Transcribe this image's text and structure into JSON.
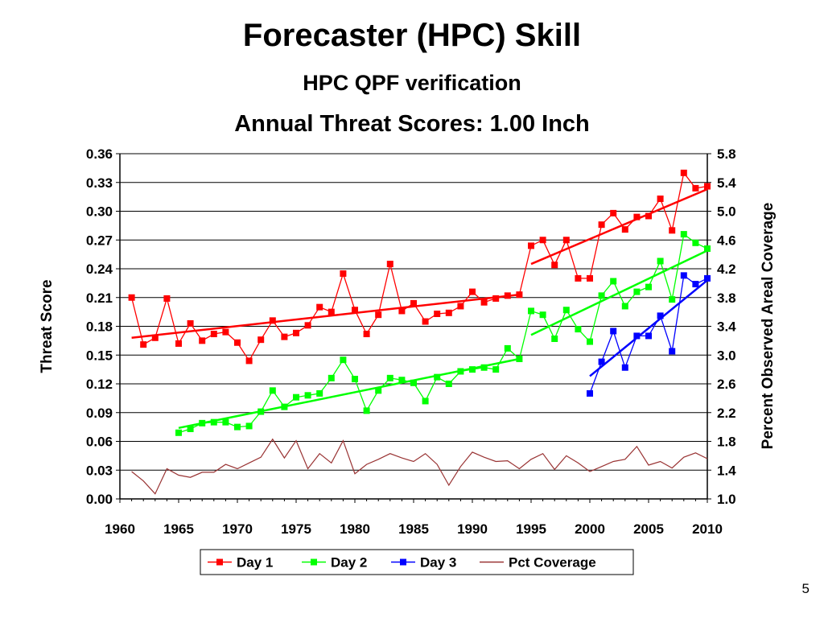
{
  "slide": {
    "title": "Forecaster (HPC) Skill",
    "page_number": "5"
  },
  "chart_data": {
    "type": "line",
    "title": "HPC QPF verification",
    "subtitle": "Annual Threat Scores:  1.00 Inch",
    "xlabel": "",
    "ylabel": "Threat Score",
    "y2label": "Percent Observed Areal Coverage",
    "xlim": [
      1960,
      2010
    ],
    "ylim": [
      0.0,
      0.36
    ],
    "y2lim": [
      1.0,
      5.8
    ],
    "x_ticks": [
      1960,
      1965,
      1970,
      1975,
      1980,
      1985,
      1990,
      1995,
      2000,
      2005,
      2010
    ],
    "y_ticks": [
      "0.00",
      "0.03",
      "0.06",
      "0.09",
      "0.12",
      "0.15",
      "0.18",
      "0.21",
      "0.24",
      "0.27",
      "0.30",
      "0.33",
      "0.36"
    ],
    "y2_ticks": [
      "1.0",
      "1.4",
      "1.8",
      "2.2",
      "2.6",
      "3.0",
      "3.4",
      "3.8",
      "4.2",
      "4.6",
      "5.0",
      "5.4",
      "5.8"
    ],
    "grid": "horizontal",
    "legend_position": "bottom",
    "series": [
      {
        "name": "Day 1",
        "color": "#ff0000",
        "marker": "square",
        "axis": "left",
        "x": [
          1961,
          1962,
          1963,
          1964,
          1965,
          1966,
          1967,
          1968,
          1969,
          1970,
          1971,
          1972,
          1973,
          1974,
          1975,
          1976,
          1977,
          1978,
          1979,
          1980,
          1981,
          1982,
          1983,
          1984,
          1985,
          1986,
          1987,
          1988,
          1989,
          1990,
          1991,
          1992,
          1993,
          1994,
          1995,
          1996,
          1997,
          1998,
          1999,
          2000,
          2001,
          2002,
          2003,
          2004,
          2005,
          2006,
          2007,
          2008,
          2009,
          2010
        ],
        "values": [
          0.21,
          0.161,
          0.168,
          0.209,
          0.162,
          0.183,
          0.165,
          0.172,
          0.174,
          0.163,
          0.144,
          0.166,
          0.186,
          0.169,
          0.173,
          0.181,
          0.2,
          0.195,
          0.235,
          0.197,
          0.172,
          0.192,
          0.245,
          0.196,
          0.204,
          0.185,
          0.193,
          0.194,
          0.201,
          0.216,
          0.205,
          0.209,
          0.212,
          0.213,
          0.264,
          0.27,
          0.244,
          0.27,
          0.23,
          0.23,
          0.286,
          0.298,
          0.281,
          0.294,
          0.295,
          0.313,
          0.28,
          0.34,
          0.324,
          0.326
        ]
      },
      {
        "name": "Day 2",
        "color": "#00ff00",
        "marker": "square",
        "axis": "left",
        "x": [
          1965,
          1966,
          1967,
          1968,
          1969,
          1970,
          1971,
          1972,
          1973,
          1974,
          1975,
          1976,
          1977,
          1978,
          1979,
          1980,
          1981,
          1982,
          1983,
          1984,
          1985,
          1986,
          1987,
          1988,
          1989,
          1990,
          1991,
          1992,
          1993,
          1994,
          1995,
          1996,
          1997,
          1998,
          1999,
          2000,
          2001,
          2002,
          2003,
          2004,
          2005,
          2006,
          2007,
          2008,
          2009,
          2010
        ],
        "values": [
          0.069,
          0.073,
          0.079,
          0.08,
          0.08,
          0.075,
          0.076,
          0.091,
          0.113,
          0.096,
          0.106,
          0.108,
          0.11,
          0.126,
          0.145,
          0.125,
          0.092,
          0.113,
          0.126,
          0.124,
          0.121,
          0.102,
          0.127,
          0.12,
          0.133,
          0.135,
          0.137,
          0.135,
          0.157,
          0.146,
          0.196,
          0.192,
          0.167,
          0.197,
          0.177,
          0.164,
          0.212,
          0.227,
          0.201,
          0.216,
          0.221,
          0.248,
          0.208,
          0.276,
          0.267,
          0.261
        ]
      },
      {
        "name": "Day 3",
        "color": "#0000ff",
        "marker": "square",
        "axis": "left",
        "x": [
          2000,
          2001,
          2002,
          2003,
          2004,
          2005,
          2006,
          2007,
          2008,
          2009,
          2010
        ],
        "values": [
          0.11,
          0.143,
          0.175,
          0.137,
          0.17,
          0.17,
          0.191,
          0.154,
          0.233,
          0.224,
          0.23
        ]
      },
      {
        "name": "Pct Coverage",
        "color": "#993333",
        "marker": "none",
        "axis": "right",
        "x": [
          1961,
          1962,
          1963,
          1964,
          1965,
          1966,
          1967,
          1968,
          1969,
          1970,
          1971,
          1972,
          1973,
          1974,
          1975,
          1976,
          1977,
          1978,
          1979,
          1980,
          1981,
          1982,
          1983,
          1984,
          1985,
          1986,
          1987,
          1988,
          1989,
          1990,
          1991,
          1992,
          1993,
          1994,
          1995,
          1996,
          1997,
          1998,
          1999,
          2000,
          2001,
          2002,
          2003,
          2004,
          2005,
          2006,
          2007,
          2008,
          2009,
          2010
        ],
        "values": [
          1.38,
          1.25,
          1.07,
          1.42,
          1.33,
          1.3,
          1.37,
          1.37,
          1.48,
          1.42,
          1.5,
          1.58,
          1.83,
          1.57,
          1.81,
          1.42,
          1.63,
          1.5,
          1.81,
          1.35,
          1.48,
          1.55,
          1.63,
          1.57,
          1.52,
          1.63,
          1.48,
          1.19,
          1.45,
          1.65,
          1.58,
          1.52,
          1.53,
          1.42,
          1.55,
          1.63,
          1.41,
          1.6,
          1.5,
          1.38,
          1.45,
          1.52,
          1.55,
          1.73,
          1.47,
          1.52,
          1.43,
          1.58,
          1.64,
          1.56
        ]
      }
    ],
    "trendlines": [
      {
        "series": "Day 1",
        "color": "#ff0000",
        "x": [
          1961,
          1994
        ],
        "values": [
          0.168,
          0.213
        ],
        "x2": [
          1995,
          2010
        ],
        "values2": [
          0.245,
          0.323
        ]
      },
      {
        "series": "Day 2",
        "color": "#00ff00",
        "x": [
          1965,
          1994
        ],
        "values": [
          0.074,
          0.146
        ],
        "x2": [
          1995,
          2010
        ],
        "values2": [
          0.171,
          0.259
        ]
      },
      {
        "series": "Day 3",
        "color": "#0000ff",
        "x": [
          2000,
          2010
        ],
        "values": [
          0.128,
          0.228
        ]
      }
    ]
  }
}
